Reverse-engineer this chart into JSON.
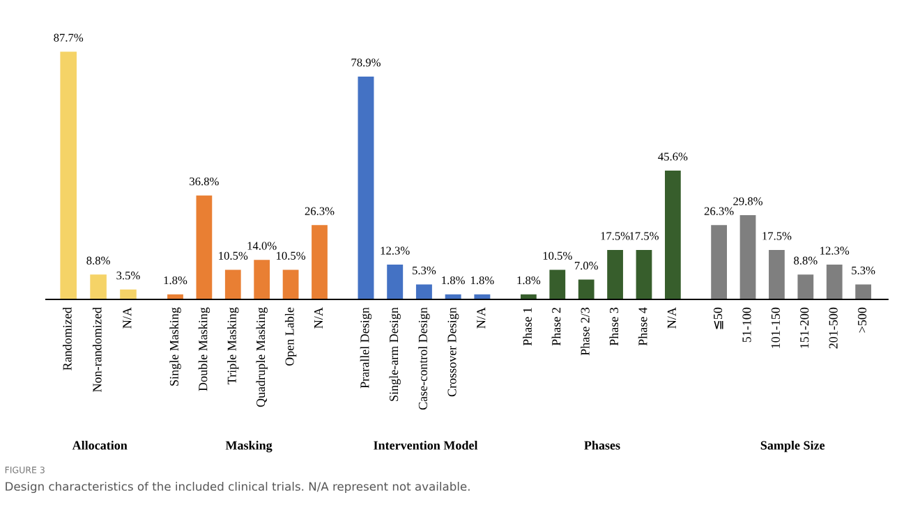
{
  "chart_data": [
    {
      "type": "bar",
      "xlabel": "Allocation",
      "categories": [
        "Randomized",
        "Non-randomized",
        "N/A"
      ],
      "values": [
        87.7,
        8.8,
        3.5
      ],
      "value_labels": [
        "87.7%",
        "8.8%",
        "3.5%"
      ],
      "color": "#f5d367",
      "tick_labels": "x",
      "grid": false,
      "legend": false,
      "annotations": [
        "FIGURE 3",
        "Design characteristics of the included clinical trials. N/A represent not available."
      ]
    },
    {
      "type": "bar",
      "xlabel": "Masking",
      "categories": [
        "Single Masking",
        "Double Masking",
        "Triple Masking",
        "Quadruple Masking",
        "Open Lable",
        "N/A"
      ],
      "values": [
        1.8,
        36.8,
        10.5,
        14.0,
        10.5,
        26.3
      ],
      "value_labels": [
        "1.8%",
        "36.8%",
        "10.5%",
        "14.0%",
        "10.5%",
        "26.3%"
      ],
      "color": "#e97f33",
      "tick_labels": "x",
      "grid": false,
      "legend": false
    },
    {
      "type": "bar",
      "xlabel": "Intervention Model",
      "categories": [
        "Prarallel Design",
        "Single-arm Design",
        "Case-control Design",
        "Crossover Design",
        "N/A"
      ],
      "values": [
        78.9,
        12.3,
        5.3,
        1.8,
        1.8
      ],
      "value_labels": [
        "78.9%",
        "12.3%",
        "5.3%",
        "1.8%",
        "1.8%"
      ],
      "color": "#4472c4",
      "tick_labels": "x",
      "grid": false,
      "legend": false
    },
    {
      "type": "bar",
      "xlabel": "Phases",
      "categories": [
        "Phase 1",
        "Phase 2",
        "Phase 2/3",
        "Phase 3",
        "Phase 4",
        "N/A"
      ],
      "values": [
        1.8,
        10.5,
        7.0,
        17.5,
        17.5,
        45.6
      ],
      "value_labels": [
        "1.8%",
        "10.5%",
        "7.0%",
        "17.5%",
        "17.5%",
        "45.6%"
      ],
      "color": "#375e2c",
      "tick_labels": "x",
      "grid": false,
      "legend": false
    },
    {
      "type": "bar",
      "xlabel": "Sample Size",
      "categories": [
        "≦50",
        "51-100",
        "101-150",
        "151-200",
        "201-500",
        ">500"
      ],
      "values": [
        26.3,
        29.8,
        17.5,
        8.8,
        12.3,
        5.3
      ],
      "value_labels": [
        "26.3%",
        "29.8%",
        "17.5%",
        "8.8%",
        "12.3%",
        "5.3%"
      ],
      "color": "#7f7f7f",
      "tick_labels": "x",
      "grid": false,
      "legend": false
    }
  ]
}
